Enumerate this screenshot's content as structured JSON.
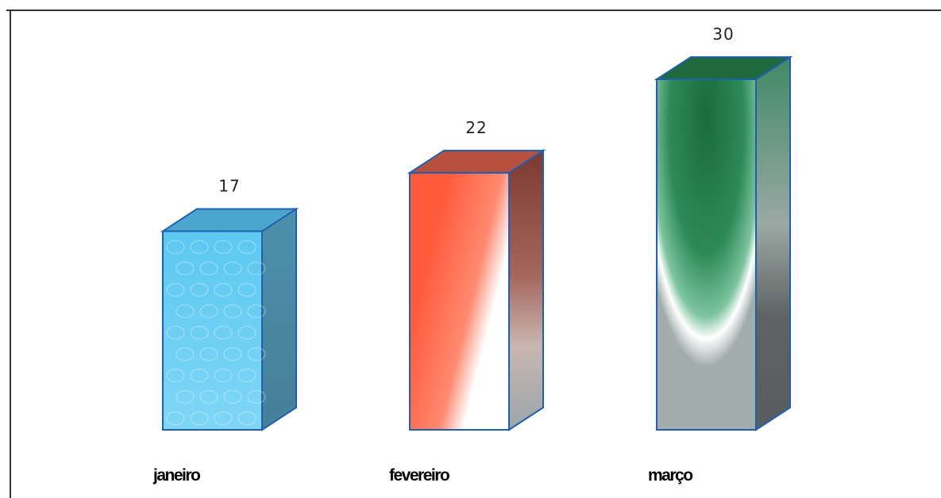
{
  "chart_data": {
    "type": "bar",
    "style": "3d-box",
    "categories": [
      "janeiro",
      "fevereiro",
      "março"
    ],
    "values": [
      17,
      22,
      30
    ],
    "data_labels": [
      "17",
      "22",
      "30"
    ],
    "ylim": [
      0,
      30
    ],
    "grid": false,
    "legend": "none",
    "title": "",
    "xlabel": "",
    "ylabel": "",
    "colors": {
      "janeiro": {
        "front_top": "#5cc8f0",
        "front_bottom": "#7fd6f6",
        "side": "#4f8ea8",
        "top": "#4aa6cc",
        "edge": "#1f5fb0"
      },
      "fevereiro": {
        "front_top": "#ff5a3c",
        "front_bottom": "#ffffff",
        "side": "#8a4a40",
        "top": "#b8503e",
        "edge": "#1f5fb0"
      },
      "março": {
        "front_top": "#1d6b3e",
        "front_bottom": "#a2acac",
        "side": "#5b5f5f",
        "top": "#1e6a3c",
        "edge": "#1f5fb0"
      }
    }
  }
}
